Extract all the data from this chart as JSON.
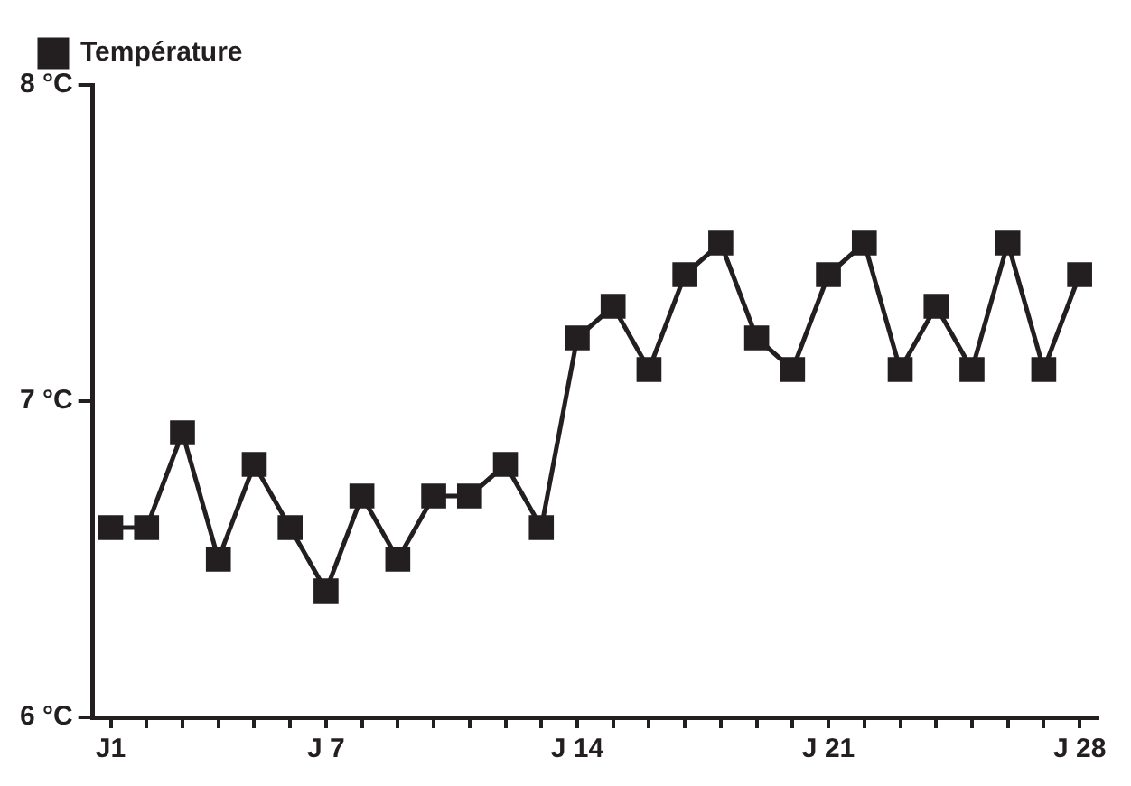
{
  "chart_data": {
    "type": "line",
    "categories": [
      "J1",
      null,
      null,
      null,
      null,
      null,
      "J 7",
      null,
      null,
      null,
      null,
      null,
      null,
      "J 14",
      null,
      null,
      null,
      null,
      null,
      null,
      "J 21",
      null,
      null,
      null,
      null,
      null,
      null,
      "J 28"
    ],
    "series": [
      {
        "name": "Température",
        "color": "#231f20",
        "values": [
          6.6,
          6.6,
          6.9,
          6.5,
          6.8,
          6.6,
          6.4,
          6.7,
          6.5,
          6.7,
          6.7,
          6.8,
          6.6,
          7.2,
          7.3,
          7.1,
          7.4,
          7.5,
          7.2,
          7.1,
          7.4,
          7.5,
          7.1,
          7.3,
          7.1,
          7.5,
          7.1,
          7.4
        ]
      }
    ],
    "ylim": [
      6,
      8
    ],
    "yticks": [
      {
        "value": 6,
        "label": "6 °C"
      },
      {
        "value": 7,
        "label": "7 °C"
      },
      {
        "value": 8,
        "label": "8 °C"
      }
    ],
    "marker": "square",
    "line_style": "solid",
    "legend": "top left"
  }
}
